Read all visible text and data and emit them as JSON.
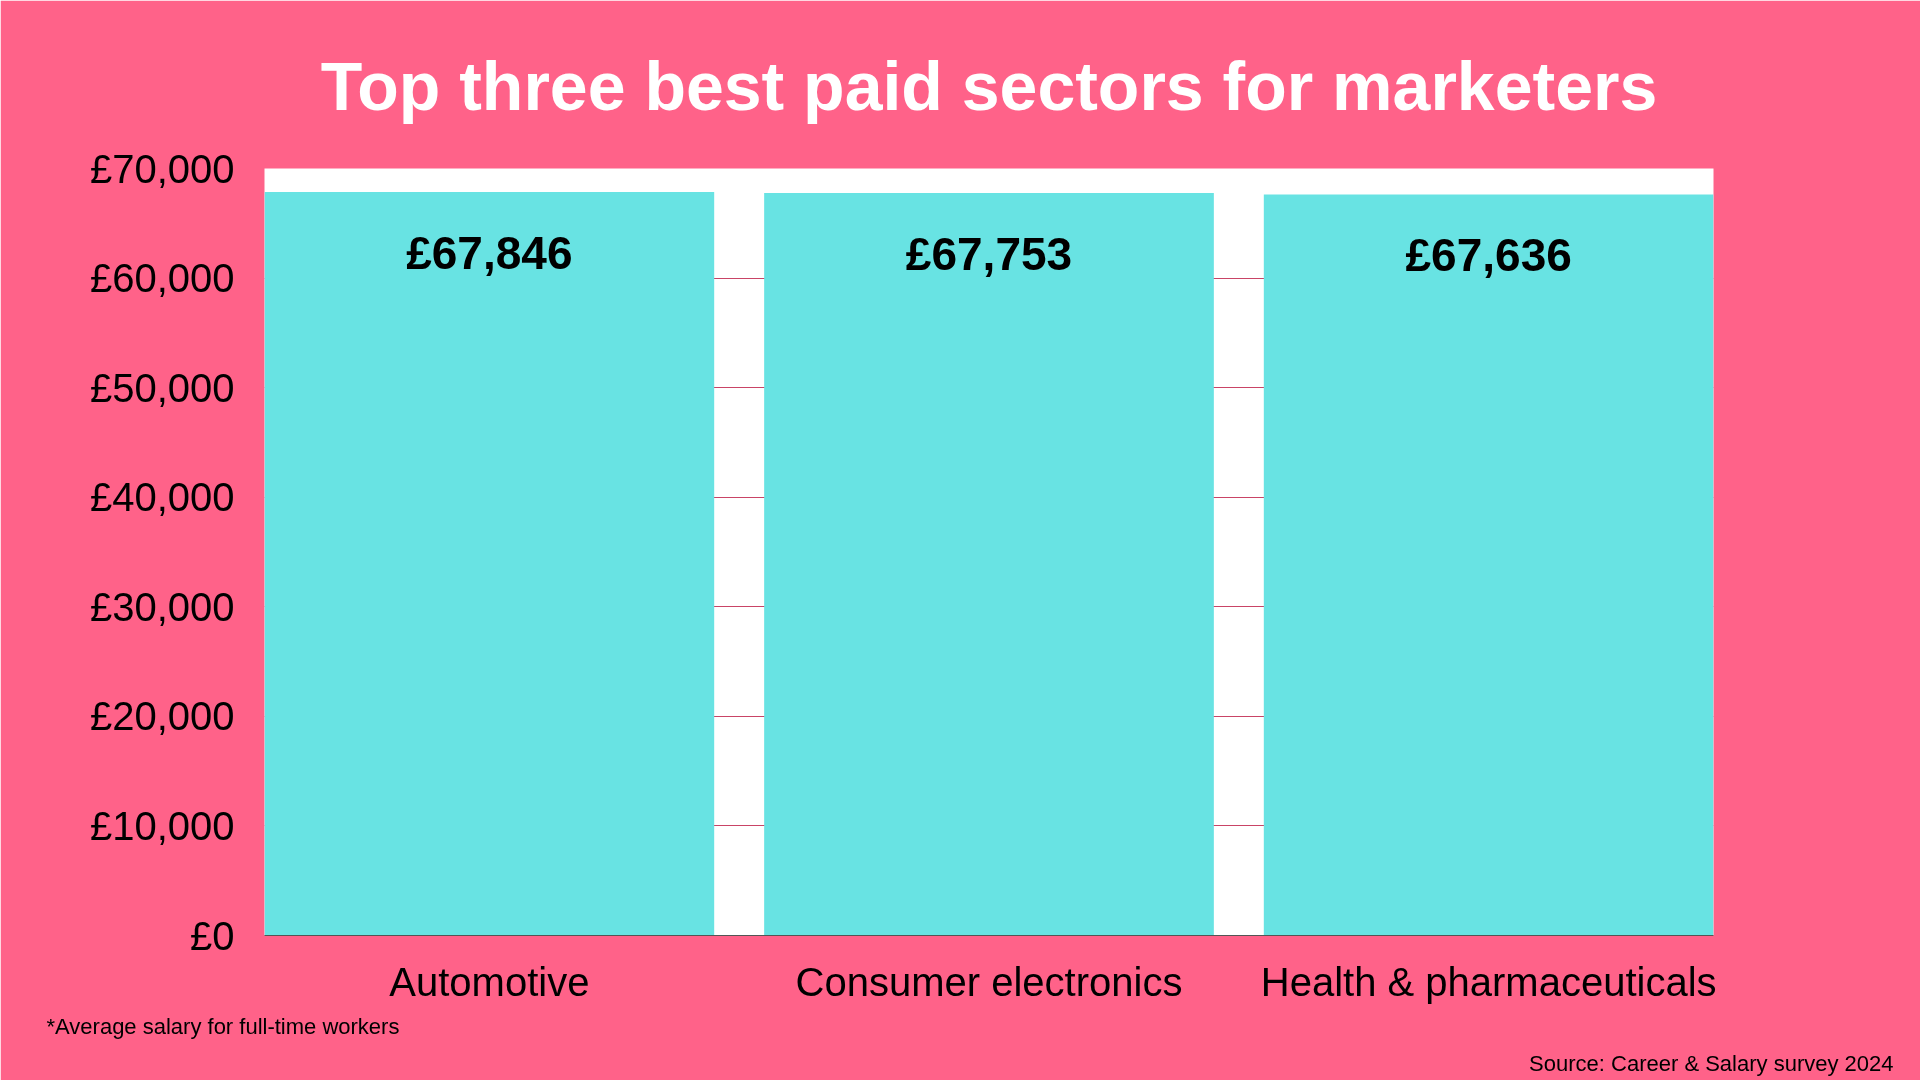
{
  "chart_data": {
    "type": "bar",
    "title": "Top three best paid sectors for marketers",
    "categories": [
      "Automotive",
      "Consumer electronics",
      "Health & pharmaceuticals"
    ],
    "values": [
      67846,
      67753,
      67636
    ],
    "value_labels": [
      "£67,846",
      "£67,753",
      "£67,636"
    ],
    "color": "#68e3e3",
    "ylim": [
      0,
      70000
    ],
    "yticks": [
      {
        "value": 0,
        "label": "£0"
      },
      {
        "value": 10000,
        "label": "£10,000"
      },
      {
        "value": 20000,
        "label": "£20,000"
      },
      {
        "value": 30000,
        "label": "£30,000"
      },
      {
        "value": 40000,
        "label": "£40,000"
      },
      {
        "value": 50000,
        "label": "£50,000"
      },
      {
        "value": 60000,
        "label": "£60,000"
      },
      {
        "value": 70000,
        "label": "£70,000"
      }
    ],
    "grid": "y",
    "annotations": [
      "*Average salary for full-time workers",
      "Source: Career & Salary survey 2024"
    ]
  }
}
